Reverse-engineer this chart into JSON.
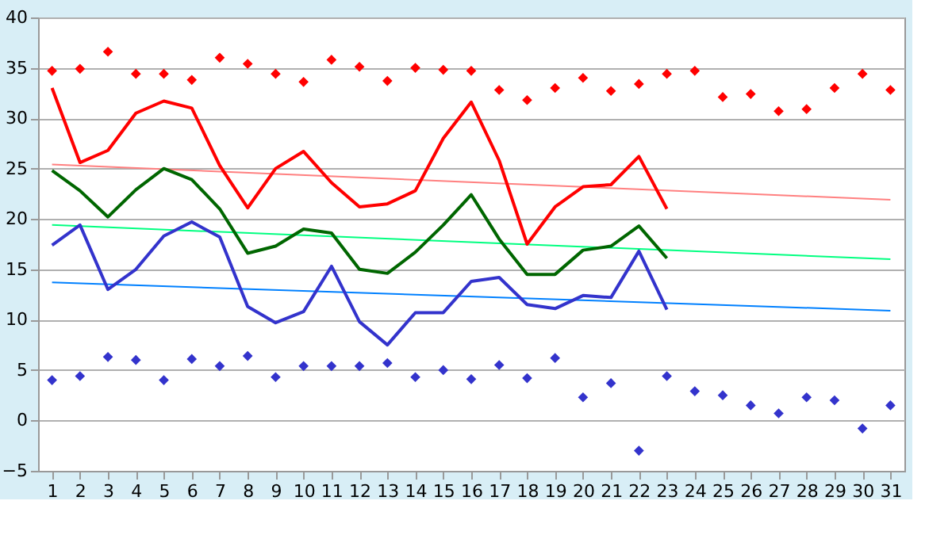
{
  "chart_data": {
    "type": "line",
    "x": [
      1,
      2,
      3,
      4,
      5,
      6,
      7,
      8,
      9,
      10,
      11,
      12,
      13,
      14,
      15,
      16,
      17,
      18,
      19,
      20,
      21,
      22,
      23,
      24,
      25,
      26,
      27,
      28,
      29,
      30,
      31
    ],
    "xlim": [
      0.5,
      31.5
    ],
    "xticks": [
      1,
      2,
      3,
      4,
      5,
      6,
      7,
      8,
      9,
      10,
      11,
      12,
      13,
      14,
      15,
      16,
      17,
      18,
      19,
      20,
      21,
      22,
      23,
      24,
      25,
      26,
      27,
      28,
      29,
      30,
      31
    ],
    "ylim": [
      -5,
      40
    ],
    "yticks": [
      -5,
      0,
      5,
      10,
      15,
      20,
      25,
      30,
      35,
      40
    ],
    "grid": "y",
    "series": [
      {
        "type": "scatter",
        "marker": "diamond",
        "color": "#ff0000",
        "values": [
          34.7,
          34.9,
          36.6,
          34.4,
          34.4,
          33.8,
          36,
          35.4,
          34.4,
          33.6,
          35.8,
          35.1,
          33.7,
          35,
          34.8,
          34.7,
          32.8,
          31.8,
          33,
          34,
          32.7,
          33.4,
          34.4,
          34.7,
          32.1,
          32.4,
          30.7,
          30.9,
          33,
          34.4,
          32.8
        ]
      },
      {
        "color": "#ff8080",
        "x": [
          1,
          31
        ],
        "values": [
          25.4,
          21.9
        ]
      },
      {
        "color": "#00ff80",
        "x": [
          1,
          31
        ],
        "values": [
          19.4,
          16
        ]
      },
      {
        "color": "#0080ff",
        "x": [
          1,
          31
        ],
        "values": [
          13.7,
          10.9
        ]
      },
      {
        "color": "#ff0000",
        "x": [
          1,
          2,
          3,
          4,
          5,
          6,
          7,
          8,
          9,
          10,
          11,
          12,
          13,
          14,
          15,
          16,
          17,
          18,
          19,
          20,
          21,
          22,
          23
        ],
        "values": [
          33,
          25.6,
          26.8,
          30.5,
          31.7,
          31,
          25.3,
          21.1,
          25,
          26.7,
          23.6,
          21.2,
          21.5,
          22.8,
          28,
          31.6,
          25.8,
          17.5,
          21.2,
          23.2,
          23.4,
          26.2,
          21
        ]
      },
      {
        "color": "#006600",
        "x": [
          1,
          2,
          3,
          4,
          5,
          6,
          7,
          8,
          9,
          10,
          11,
          12,
          13,
          14,
          15,
          16,
          17,
          18,
          19,
          20,
          21,
          22,
          23
        ],
        "values": [
          24.8,
          22.8,
          20.2,
          22.9,
          25,
          23.9,
          21,
          16.6,
          17.3,
          19,
          18.6,
          15,
          14.6,
          16.7,
          19.4,
          22.4,
          18,
          14.5,
          14.5,
          16.9,
          17.3,
          19.3,
          16.1
        ]
      },
      {
        "color": "#3333cc",
        "x": [
          1,
          2,
          3,
          4,
          5,
          6,
          7,
          8,
          9,
          10,
          11,
          12,
          13,
          14,
          15,
          16,
          17,
          18,
          19,
          20,
          21,
          22,
          23
        ],
        "values": [
          17.4,
          19.4,
          13,
          15,
          18.3,
          19.7,
          18.2,
          11.3,
          9.7,
          10.8,
          15.3,
          9.8,
          7.5,
          10.7,
          10.7,
          13.8,
          14.2,
          11.5,
          11.1,
          12.4,
          12.2,
          16.8,
          11
        ]
      },
      {
        "type": "scatter",
        "marker": "diamond",
        "color": "#3333cc",
        "values": [
          4,
          4.4,
          6.3,
          6,
          4,
          6.1,
          5.4,
          6.4,
          4.3,
          5.4,
          5.4,
          5.4,
          5.7,
          4.3,
          5,
          4.1,
          5.5,
          4.2,
          6.2,
          2.3,
          3.7,
          -3,
          4.4,
          2.9,
          2.5,
          1.5,
          0.7,
          2.3,
          2,
          -0.8,
          1.5
        ]
      }
    ]
  }
}
